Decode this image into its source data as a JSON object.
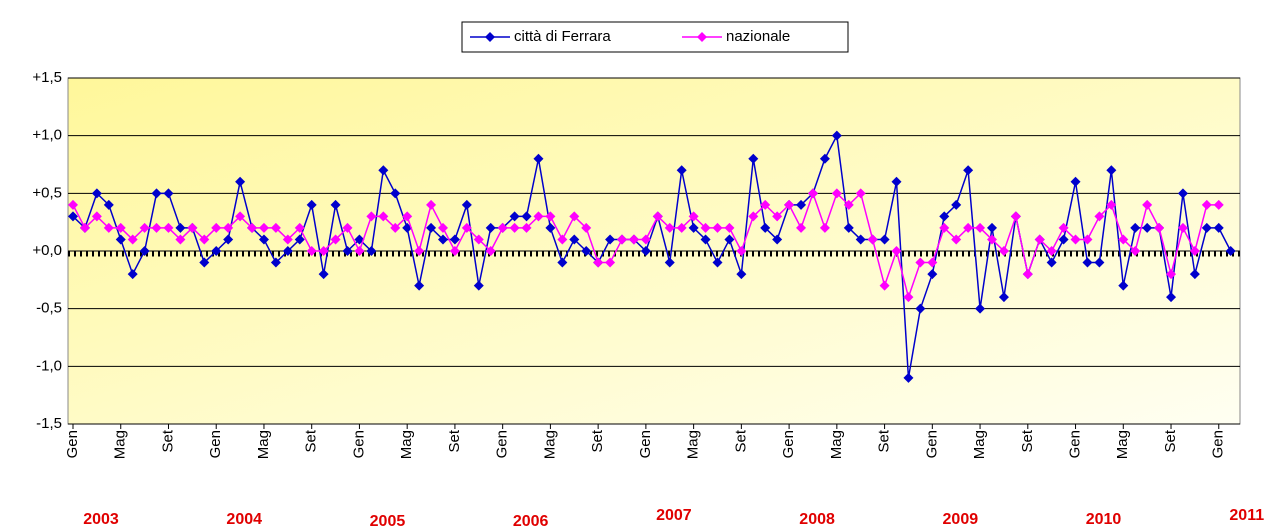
{
  "chart_data": {
    "type": "line",
    "categories": [
      "Gen",
      null,
      null,
      null,
      "Mag",
      null,
      null,
      null,
      "Set",
      null,
      null,
      null,
      "Gen",
      null,
      null,
      null,
      "Mag",
      null,
      null,
      null,
      "Set",
      null,
      null,
      null,
      "Gen",
      null,
      null,
      null,
      "Mag",
      null,
      null,
      null,
      "Set",
      null,
      null,
      null,
      "Gen",
      null,
      null,
      null,
      "Mag",
      null,
      null,
      null,
      "Set",
      null,
      null,
      null,
      "Gen",
      null,
      null,
      null,
      "Mag",
      null,
      null,
      null,
      "Set",
      null,
      null,
      null,
      "Gen",
      null,
      null,
      null,
      "Mag",
      null,
      null,
      null,
      "Set",
      null,
      null,
      null,
      "Gen",
      null,
      null,
      null,
      "Mag",
      null,
      null,
      null,
      "Set",
      null,
      null,
      null,
      "Gen",
      null,
      null,
      null,
      "Mag",
      null,
      null,
      null,
      "Set",
      null,
      null,
      null,
      "Gen",
      null
    ],
    "years": [
      "2003",
      "2004",
      "2005",
      "2006",
      "2007",
      "2008",
      "2009",
      "2010",
      "2011"
    ],
    "series": [
      {
        "name": "città di Ferrara",
        "color": "#0000cc",
        "values": [
          0.3,
          0.2,
          0.5,
          0.4,
          0.1,
          -0.2,
          0.0,
          0.5,
          0.5,
          0.2,
          0.2,
          -0.1,
          0.0,
          0.1,
          0.6,
          0.2,
          0.1,
          -0.1,
          0.0,
          0.1,
          0.4,
          -0.2,
          0.4,
          0.0,
          0.1,
          0.0,
          0.7,
          0.5,
          0.2,
          -0.3,
          0.2,
          0.1,
          0.1,
          0.4,
          -0.3,
          0.2,
          0.2,
          0.3,
          0.3,
          0.8,
          0.2,
          -0.1,
          0.1,
          0.0,
          -0.1,
          0.1,
          0.1,
          0.1,
          0.0,
          0.3,
          -0.1,
          0.7,
          0.2,
          0.1,
          -0.1,
          0.1,
          -0.2,
          0.8,
          0.2,
          0.1,
          0.4,
          0.4,
          0.5,
          0.8,
          1.0,
          0.2,
          0.1,
          0.1,
          0.1,
          0.6,
          -1.1,
          -0.5,
          -0.2,
          0.3,
          0.4,
          0.7,
          -0.5,
          0.2,
          -0.4,
          0.3,
          -0.2,
          0.1,
          -0.1,
          0.1,
          0.6,
          -0.1,
          -0.1,
          0.7,
          -0.3,
          0.2,
          0.2,
          0.2,
          -0.4,
          0.5,
          -0.2,
          0.2,
          0.2,
          0.0
        ]
      },
      {
        "name": "nazionale",
        "color": "#ff00ff",
        "values": [
          0.4,
          0.2,
          0.3,
          0.2,
          0.2,
          0.1,
          0.2,
          0.2,
          0.2,
          0.1,
          0.2,
          0.1,
          0.2,
          0.2,
          0.3,
          0.2,
          0.2,
          0.2,
          0.1,
          0.2,
          0.0,
          0.0,
          0.1,
          0.2,
          0.0,
          0.3,
          0.3,
          0.2,
          0.3,
          0.0,
          0.4,
          0.2,
          0.0,
          0.2,
          0.1,
          0.0,
          0.2,
          0.2,
          0.2,
          0.3,
          0.3,
          0.1,
          0.3,
          0.2,
          -0.1,
          -0.1,
          0.1,
          0.1,
          0.1,
          0.3,
          0.2,
          0.2,
          0.3,
          0.2,
          0.2,
          0.2,
          0.0,
          0.3,
          0.4,
          0.3,
          0.4,
          0.2,
          0.5,
          0.2,
          0.5,
          0.4,
          0.5,
          0.1,
          -0.3,
          0.0,
          -0.4,
          -0.1,
          -0.1,
          0.2,
          0.1,
          0.2,
          0.2,
          0.1,
          0.0,
          0.3,
          -0.2,
          0.1,
          0.0,
          0.2,
          0.1,
          0.1,
          0.3,
          0.4,
          0.1,
          0.0,
          0.4,
          0.2,
          -0.2,
          0.2,
          0.0,
          0.4,
          0.4,
          null
        ]
      }
    ],
    "ylim": [
      -1.5,
      1.5
    ],
    "yticks": [
      {
        "value": -1.5,
        "label": "-1,5"
      },
      {
        "value": -1.0,
        "label": "-1,0"
      },
      {
        "value": -0.5,
        "label": "-0,5"
      },
      {
        "value": 0,
        "label": "+0,0"
      },
      {
        "value": 0.5,
        "label": "+0,5"
      },
      {
        "value": 1.0,
        "label": "+1,0"
      },
      {
        "value": 1.5,
        "label": "+1,5"
      }
    ],
    "grid": true,
    "legend": "top"
  }
}
